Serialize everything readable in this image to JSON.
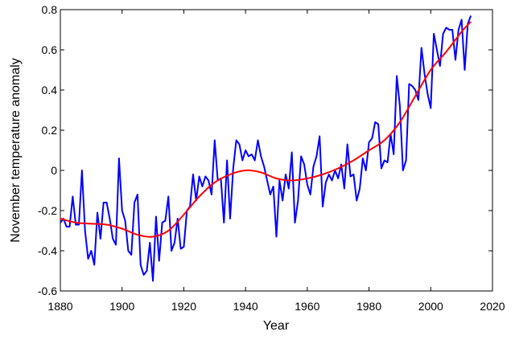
{
  "chart_data": {
    "type": "line",
    "xlabel": "Year",
    "ylabel": "November temperature anomaly",
    "xlim": [
      1880,
      2020
    ],
    "xticks": [
      1880,
      1900,
      1920,
      1940,
      1960,
      1980,
      2000,
      2020
    ],
    "ylim": [
      -0.6,
      0.8
    ],
    "yticks": [
      -0.6,
      -0.4,
      -0.2,
      0,
      0.2,
      0.4,
      0.6,
      0.8
    ],
    "x": [
      1880,
      1881,
      1882,
      1883,
      1884,
      1885,
      1886,
      1887,
      1888,
      1889,
      1890,
      1891,
      1892,
      1893,
      1894,
      1895,
      1896,
      1897,
      1898,
      1899,
      1900,
      1901,
      1902,
      1903,
      1904,
      1905,
      1906,
      1907,
      1908,
      1909,
      1910,
      1911,
      1912,
      1913,
      1914,
      1915,
      1916,
      1917,
      1918,
      1919,
      1920,
      1921,
      1922,
      1923,
      1924,
      1925,
      1926,
      1927,
      1928,
      1929,
      1930,
      1931,
      1932,
      1933,
      1934,
      1935,
      1936,
      1937,
      1938,
      1939,
      1940,
      1941,
      1942,
      1943,
      1944,
      1945,
      1946,
      1947,
      1948,
      1949,
      1950,
      1951,
      1952,
      1953,
      1954,
      1955,
      1956,
      1957,
      1958,
      1959,
      1960,
      1961,
      1962,
      1963,
      1964,
      1965,
      1966,
      1967,
      1968,
      1969,
      1970,
      1971,
      1972,
      1973,
      1974,
      1975,
      1976,
      1977,
      1978,
      1979,
      1980,
      1981,
      1982,
      1983,
      1984,
      1985,
      1986,
      1987,
      1988,
      1989,
      1990,
      1991,
      1992,
      1993,
      1994,
      1995,
      1996,
      1997,
      1998,
      1999,
      2000,
      2001,
      2002,
      2003,
      2004,
      2005,
      2006,
      2007,
      2008,
      2009,
      2010,
      2011,
      2012,
      2013
    ],
    "series": [
      {
        "color": "#0000ff",
        "smooth": false,
        "values": [
          -0.26,
          -0.24,
          -0.28,
          -0.28,
          -0.13,
          -0.27,
          -0.27,
          0.0,
          -0.3,
          -0.44,
          -0.4,
          -0.47,
          -0.21,
          -0.34,
          -0.16,
          -0.16,
          -0.24,
          -0.34,
          -0.37,
          0.06,
          -0.2,
          -0.25,
          -0.4,
          -0.42,
          -0.16,
          -0.12,
          -0.47,
          -0.52,
          -0.5,
          -0.36,
          -0.55,
          -0.23,
          -0.45,
          -0.26,
          -0.25,
          -0.13,
          -0.4,
          -0.36,
          -0.24,
          -0.39,
          -0.38,
          -0.2,
          -0.18,
          -0.02,
          -0.15,
          -0.03,
          -0.08,
          -0.03,
          -0.05,
          -0.12,
          0.15,
          -0.05,
          -0.04,
          -0.26,
          0.05,
          -0.24,
          0.01,
          0.15,
          0.13,
          0.05,
          0.1,
          0.07,
          0.08,
          0.05,
          0.15,
          0.07,
          0.02,
          -0.05,
          -0.12,
          -0.08,
          -0.33,
          -0.05,
          -0.15,
          -0.02,
          -0.09,
          0.09,
          -0.26,
          -0.15,
          0.07,
          0.03,
          -0.07,
          -0.12,
          0.02,
          0.07,
          0.17,
          -0.18,
          -0.06,
          -0.02,
          -0.05,
          0.0,
          -0.04,
          0.03,
          -0.09,
          0.13,
          -0.03,
          -0.02,
          -0.15,
          -0.09,
          0.06,
          0.0,
          0.14,
          0.16,
          0.24,
          0.23,
          0.01,
          0.05,
          0.04,
          0.18,
          0.08,
          0.47,
          0.32,
          0.0,
          0.05,
          0.43,
          0.42,
          0.4,
          0.35,
          0.61,
          0.48,
          0.38,
          0.31,
          0.68,
          0.6,
          0.52,
          0.68,
          0.71,
          0.7,
          0.7,
          0.55,
          0.7,
          0.75,
          0.5,
          0.73,
          0.77
        ]
      },
      {
        "color": "#ff0000",
        "smooth": true,
        "x": [
          1880,
          1885,
          1890,
          1895,
          1900,
          1905,
          1910,
          1915,
          1920,
          1925,
          1930,
          1935,
          1940,
          1945,
          1950,
          1955,
          1960,
          1965,
          1970,
          1975,
          1980,
          1985,
          1990,
          1995,
          2000,
          2005,
          2010,
          2013
        ],
        "values": [
          -0.24,
          -0.26,
          -0.265,
          -0.27,
          -0.29,
          -0.32,
          -0.33,
          -0.3,
          -0.22,
          -0.13,
          -0.06,
          -0.02,
          0.0,
          -0.01,
          -0.04,
          -0.05,
          -0.04,
          -0.02,
          0.01,
          0.05,
          0.1,
          0.15,
          0.24,
          0.37,
          0.5,
          0.59,
          0.69,
          0.74
        ]
      }
    ]
  }
}
